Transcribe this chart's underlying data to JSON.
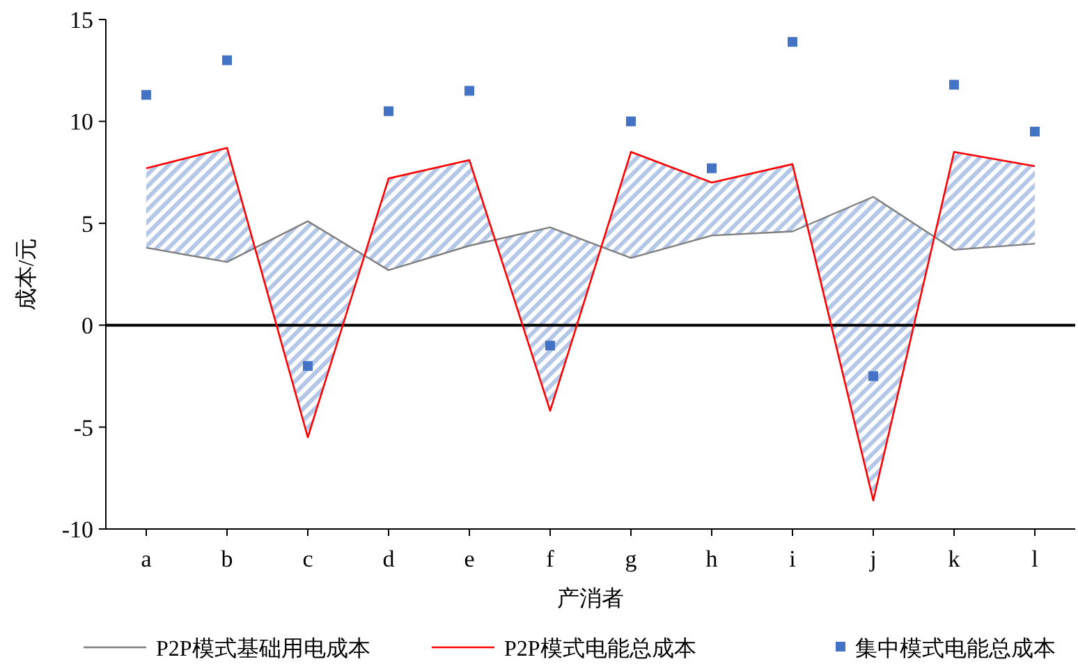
{
  "chart_data": {
    "type": "line",
    "xlabel": "产消者",
    "ylabel": "成本/元",
    "categories": [
      "a",
      "b",
      "c",
      "d",
      "e",
      "f",
      "g",
      "h",
      "i",
      "j",
      "k",
      "l"
    ],
    "series": [
      {
        "name": "P2P模式基础用电成本",
        "color": "#7f7f7f",
        "values": [
          3.8,
          3.1,
          5.1,
          2.7,
          3.9,
          4.8,
          3.3,
          4.4,
          4.6,
          6.3,
          3.7,
          4.0
        ]
      },
      {
        "name": "P2P模式电能总成本",
        "color": "#ff0000",
        "values": [
          7.7,
          8.7,
          -5.5,
          7.2,
          8.1,
          -4.2,
          8.5,
          7.0,
          7.9,
          -8.6,
          8.5,
          7.8
        ],
        "lower": [
          3.8,
          3.1,
          5.1,
          2.7,
          3.9,
          4.8,
          3.3,
          4.4,
          4.6,
          6.3,
          3.7,
          4.0
        ],
        "upper": [
          7.7,
          8.7,
          -5.5,
          7.2,
          8.1,
          -4.2,
          8.5,
          7.0,
          7.9,
          -8.6,
          8.5,
          7.8
        ]
      },
      {
        "name": "集中模式电能总成本",
        "type": "scatter",
        "color": "#4472c4",
        "marker": "square",
        "values": [
          11.3,
          13.0,
          -2.0,
          10.5,
          11.5,
          -1.0,
          10.0,
          7.7,
          13.9,
          -2.5,
          11.8,
          9.5
        ]
      }
    ],
    "ylim": [
      -10,
      15
    ],
    "yticks": [
      -10,
      -5,
      0,
      5,
      10,
      15
    ],
    "ref_lines": [
      {
        "axis": "y",
        "value": 0,
        "color": "#000000"
      }
    ],
    "grid": false,
    "legend": "bottom"
  }
}
